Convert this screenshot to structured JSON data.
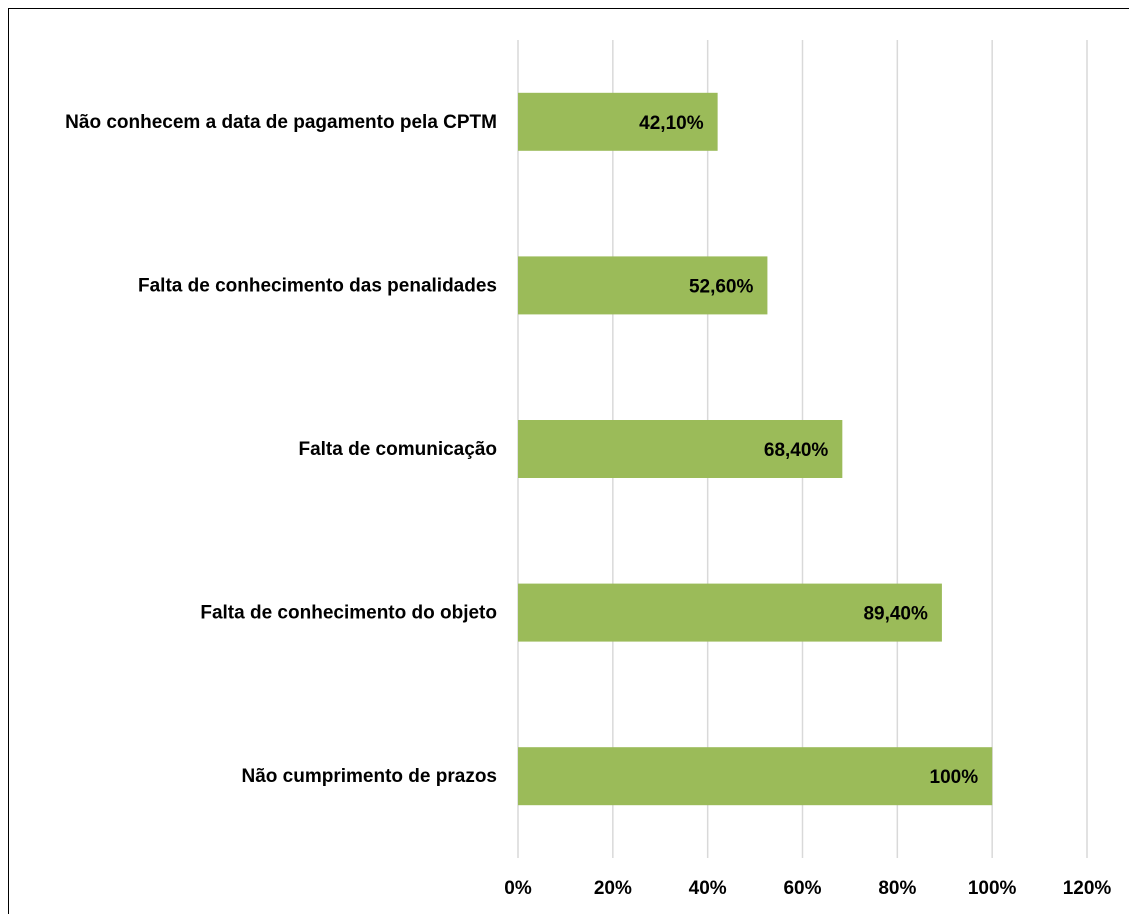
{
  "chart_data": {
    "type": "barh",
    "categories": [
      "Não conhecem a data de pagamento pela CPTM",
      "Falta de conhecimento das penalidades",
      "Falta de comunicação",
      "Falta de conhecimento do objeto",
      "Não cumprimento de prazos"
    ],
    "values": [
      42.1,
      52.6,
      68.4,
      89.4,
      100
    ],
    "value_labels": [
      "42,10%",
      "52,60%",
      "68,40%",
      "89,40%",
      "100%"
    ],
    "color": "#9bbb59",
    "xlim": [
      0,
      120
    ],
    "xticks": [
      {
        "value": 0,
        "label": "0%"
      },
      {
        "value": 20,
        "label": "20%"
      },
      {
        "value": 40,
        "label": "40%"
      },
      {
        "value": 60,
        "label": "60%"
      },
      {
        "value": 80,
        "label": "80%"
      },
      {
        "value": 100,
        "label": "100%"
      },
      {
        "value": 120,
        "label": "120%"
      }
    ],
    "grid": true
  }
}
